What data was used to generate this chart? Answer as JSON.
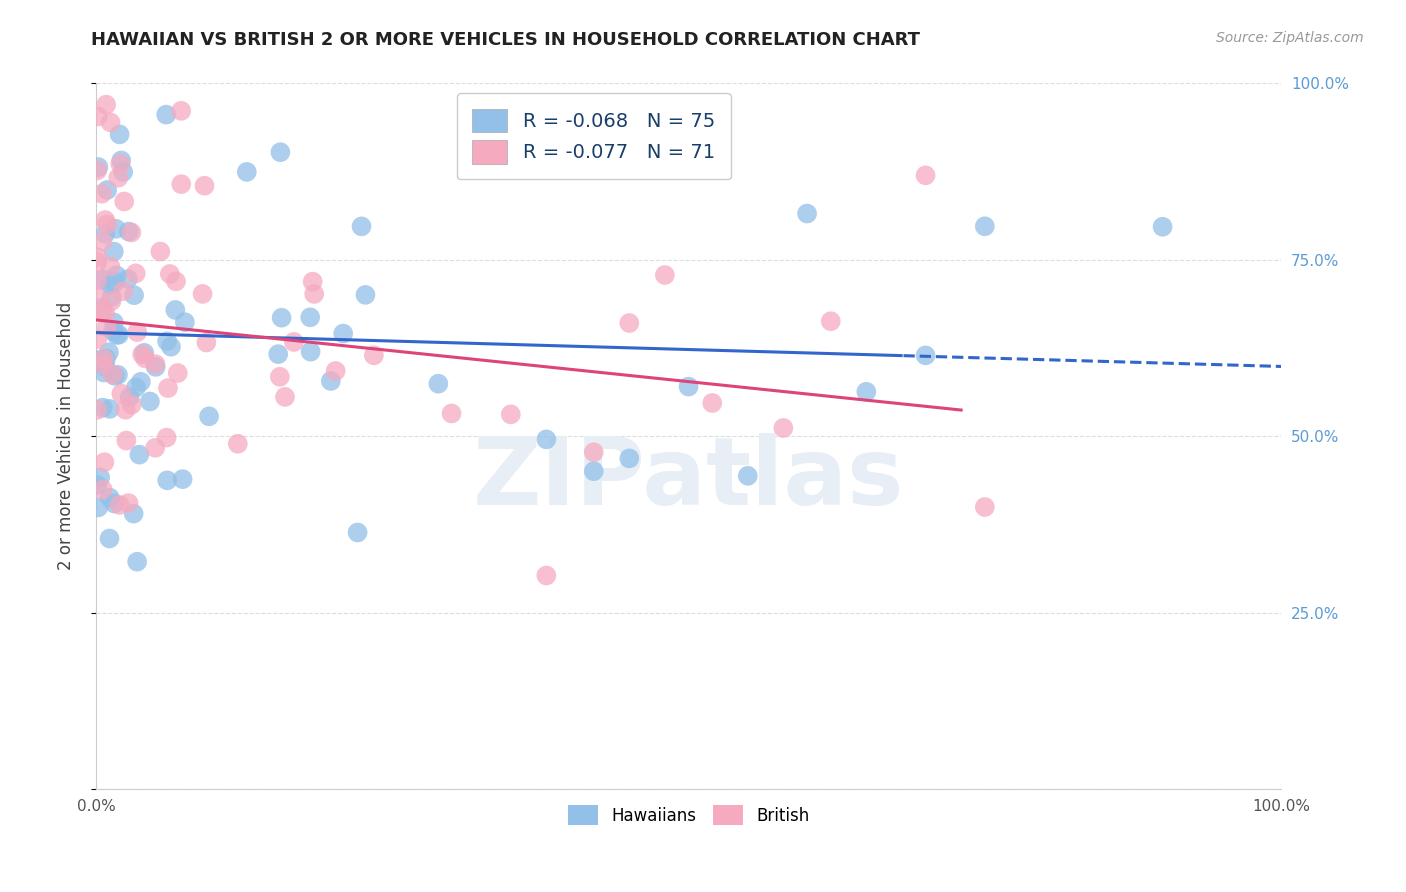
{
  "title": "HAWAIIAN VS BRITISH 2 OR MORE VEHICLES IN HOUSEHOLD CORRELATION CHART",
  "source": "Source: ZipAtlas.com",
  "ylabel": "2 or more Vehicles in Household",
  "xlim": [
    0.0,
    1.0
  ],
  "ylim": [
    0.0,
    1.0
  ],
  "legend_blue_label": "R = -0.068   N = 75",
  "legend_pink_label": "R = -0.077   N = 71",
  "blue_color": "#92C0E8",
  "pink_color": "#F5AABF",
  "blue_line_color": "#3366CC",
  "pink_line_color": "#DD4477",
  "watermark_color": "#E8EEF5",
  "watermark_text": "ZIPatlas",
  "right_tick_color": "#5B9BD5",
  "title_color": "#222222",
  "source_color": "#999999",
  "ylabel_color": "#444444"
}
